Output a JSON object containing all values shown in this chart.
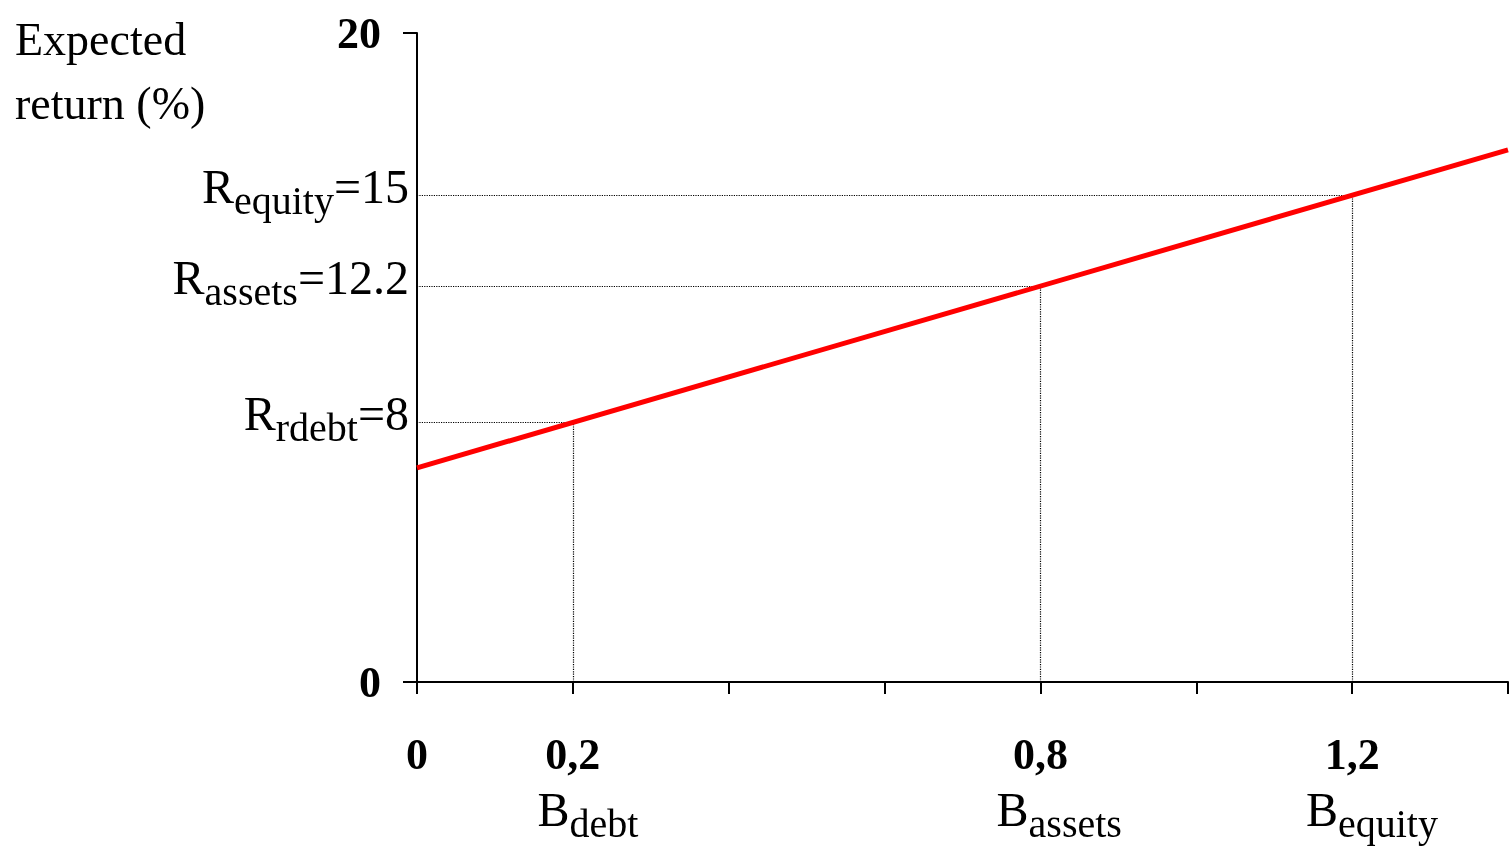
{
  "chart_data": {
    "type": "line",
    "ylabel": "Expected return (%)",
    "series": [
      {
        "color": "#ff0000",
        "x": [
          0,
          1.4
        ],
        "values": [
          6.6,
          16.4
        ]
      }
    ],
    "xlim": [
      0,
      1.4
    ],
    "xticks": [
      0,
      {
        "value": 0.2,
        "label": "0,2"
      },
      {
        "value": 0.4,
        "label": null
      },
      {
        "value": 0.6,
        "label": null
      },
      {
        "value": 0.8,
        "label": "0,8"
      },
      {
        "value": 1.0,
        "label": null
      },
      {
        "value": 1.2,
        "label": "1,2"
      },
      {
        "value": 1.4,
        "label": null
      }
    ],
    "ylim": [
      0,
      20
    ],
    "yticks": [
      0,
      20
    ],
    "ref_lines": [
      {
        "axis": "y",
        "value": 8,
        "label": "R$_{rdebt}$=8",
        "line_style": "dotted",
        "color": "#000000"
      },
      {
        "axis": "y",
        "value": 12.2,
        "label": "R$_{assets}$=12.2",
        "line_style": "dotted",
        "color": "#000000"
      },
      {
        "axis": "y",
        "value": 15,
        "label": "R$_{equity}$=15",
        "line_style": "dotted",
        "color": "#000000"
      },
      {
        "axis": "x",
        "value": 0.2,
        "label": "B$_{debt}$",
        "line_style": "dotted",
        "color": "#000000"
      },
      {
        "axis": "x",
        "value": 0.8,
        "label": "B$_{assets}$",
        "line_style": "dotted",
        "color": "#000000"
      },
      {
        "axis": "x",
        "value": 1.2,
        "label": "B$_{equity}$",
        "line_style": "dotted",
        "color": "#000000"
      }
    ],
    "grid": false,
    "marker": "none",
    "line_style": "solid"
  }
}
